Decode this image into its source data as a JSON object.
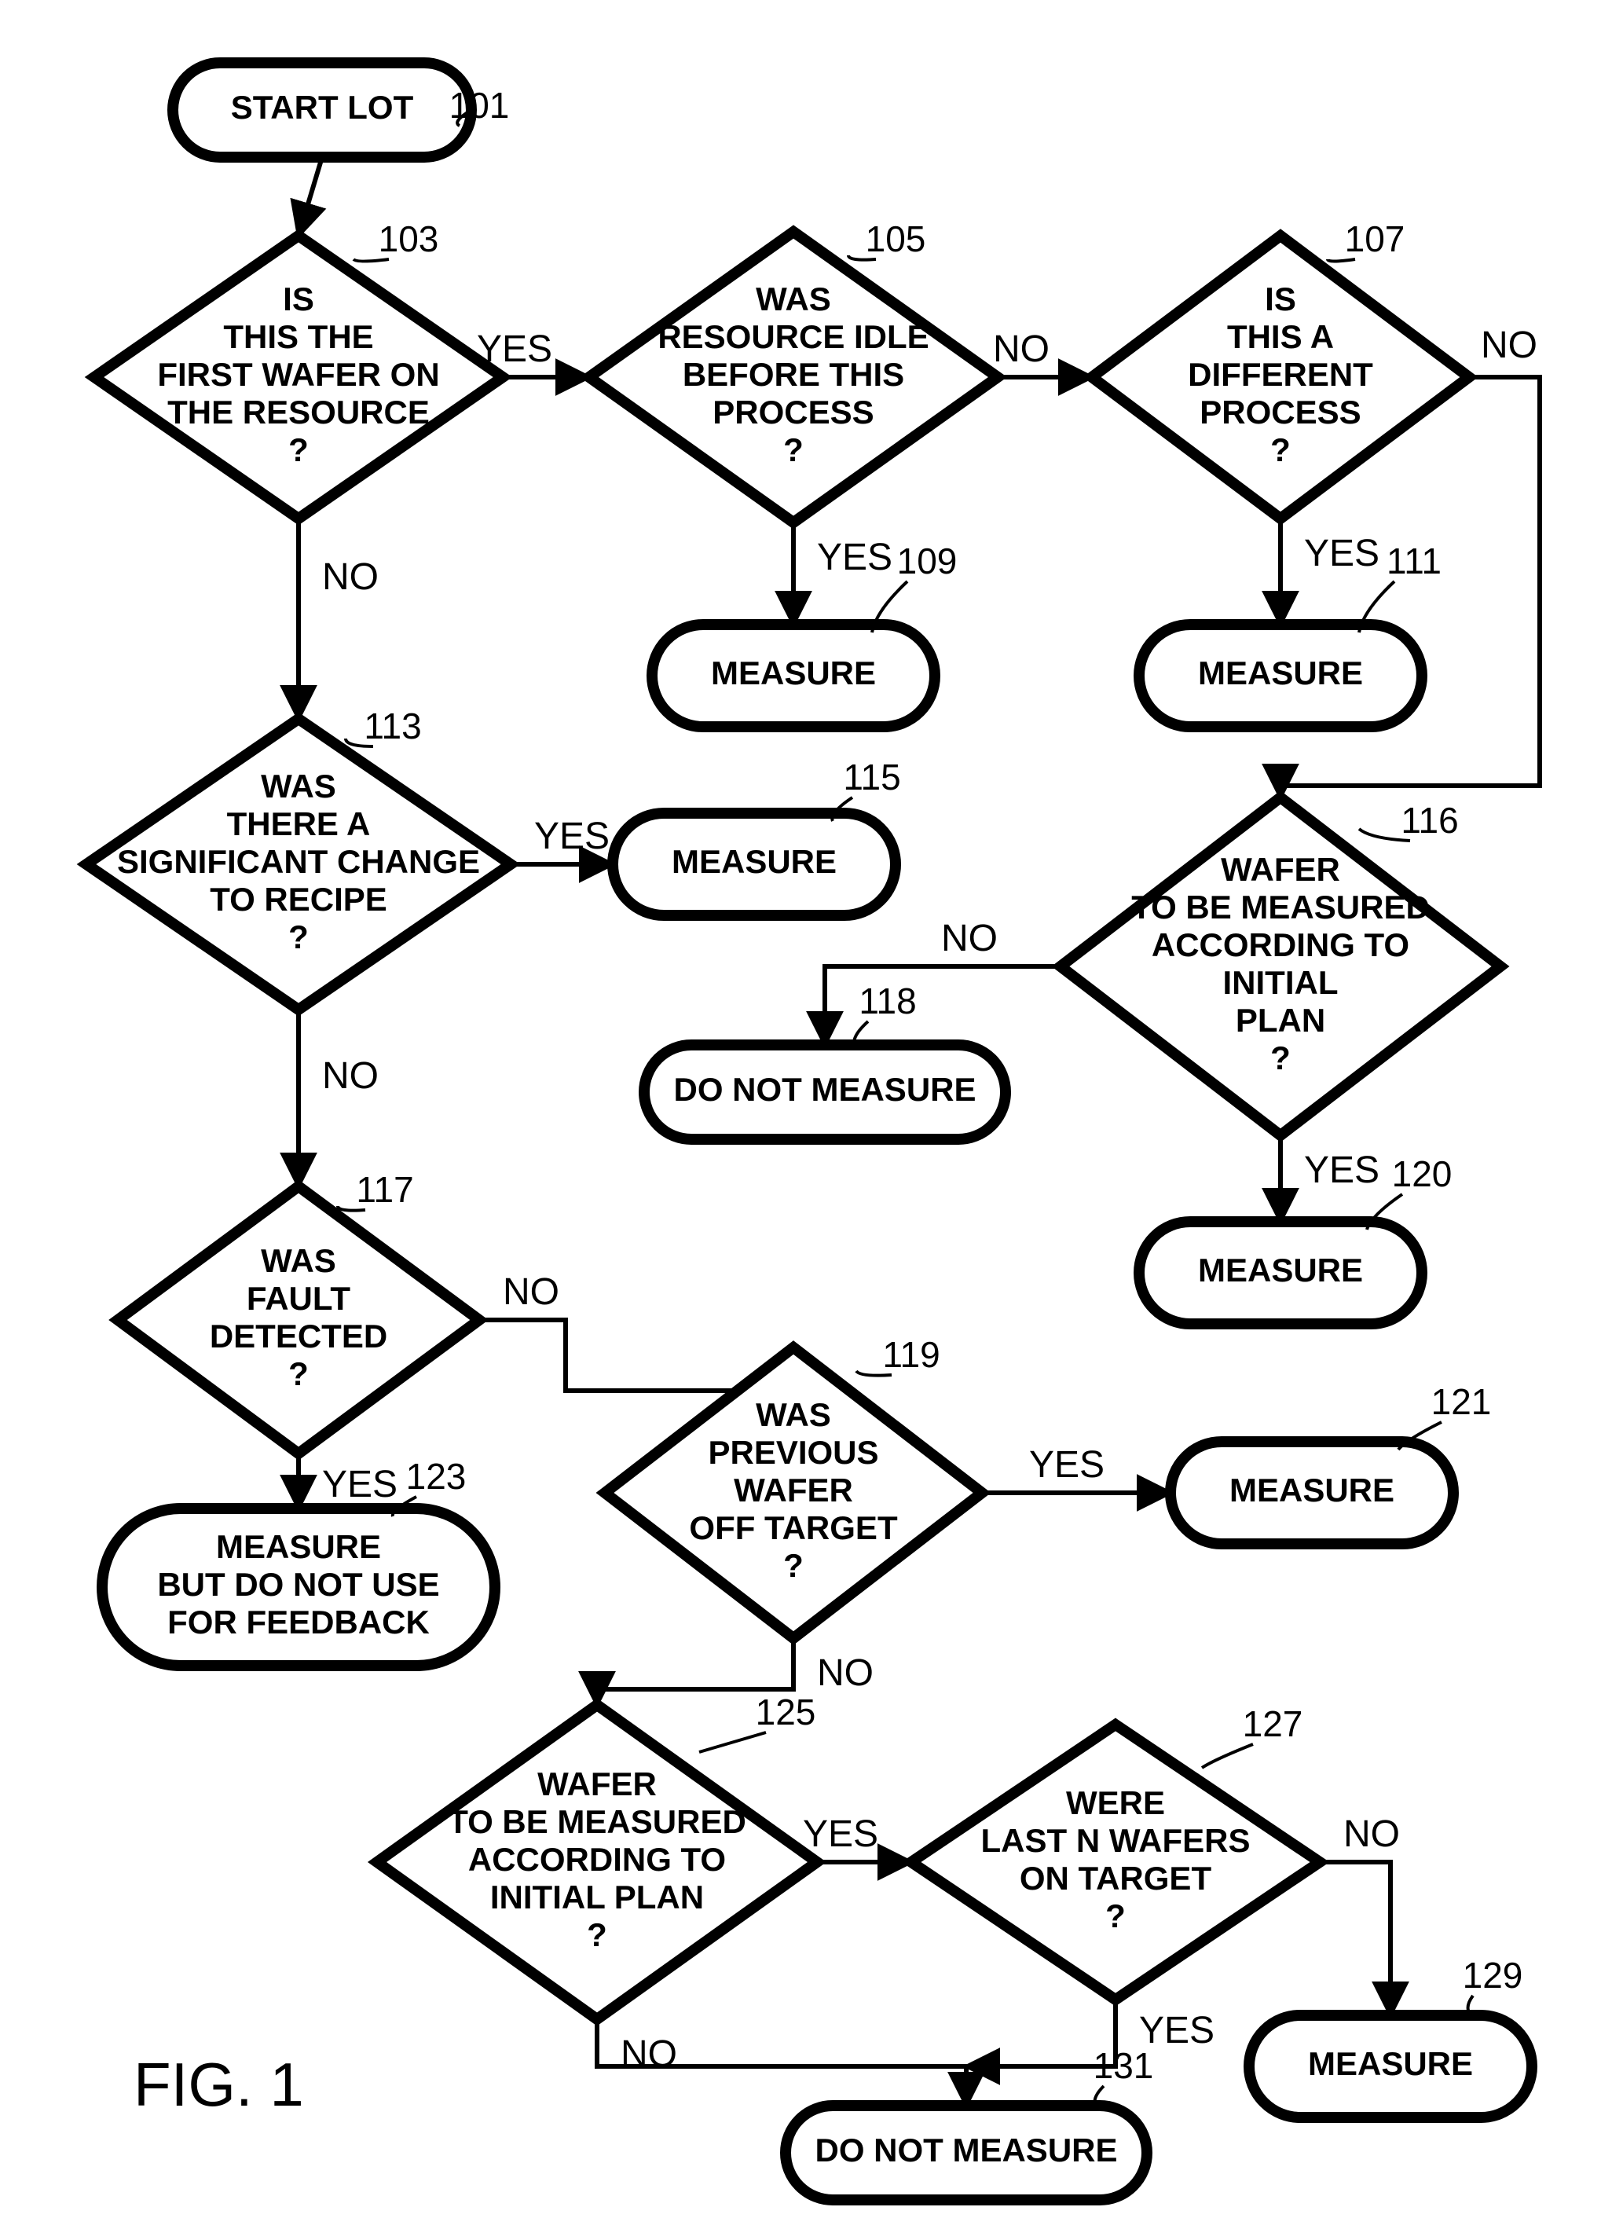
{
  "figure_label": "FIG. 1",
  "nodes": {
    "n101": {
      "ref": "101",
      "lines": [
        "START LOT"
      ]
    },
    "n103": {
      "ref": "103",
      "lines": [
        "IS",
        "THIS THE",
        "FIRST WAFER ON",
        "THE RESOURCE",
        "?"
      ]
    },
    "n105": {
      "ref": "105",
      "lines": [
        "WAS",
        "RESOURCE IDLE",
        "BEFORE THIS",
        "PROCESS",
        "?"
      ]
    },
    "n107": {
      "ref": "107",
      "lines": [
        "IS",
        "THIS A",
        "DIFFERENT",
        "PROCESS",
        "?"
      ]
    },
    "n109": {
      "ref": "109",
      "lines": [
        "MEASURE"
      ]
    },
    "n111": {
      "ref": "111",
      "lines": [
        "MEASURE"
      ]
    },
    "n113": {
      "ref": "113",
      "lines": [
        "WAS",
        "THERE A",
        "SIGNIFICANT CHANGE",
        "TO RECIPE",
        "?"
      ]
    },
    "n115": {
      "ref": "115",
      "lines": [
        "MEASURE"
      ]
    },
    "n116": {
      "ref": "116",
      "lines": [
        "WAFER",
        "TO BE MEASURED",
        "ACCORDING TO",
        "INITIAL",
        "PLAN",
        "?"
      ]
    },
    "n117": {
      "ref": "117",
      "lines": [
        "WAS",
        "FAULT",
        "DETECTED",
        "?"
      ]
    },
    "n118": {
      "ref": "118",
      "lines": [
        "DO NOT MEASURE"
      ]
    },
    "n119": {
      "ref": "119",
      "lines": [
        "WAS",
        "PREVIOUS",
        "WAFER",
        "OFF TARGET",
        "?"
      ]
    },
    "n120": {
      "ref": "120",
      "lines": [
        "MEASURE"
      ]
    },
    "n121": {
      "ref": "121",
      "lines": [
        "MEASURE"
      ]
    },
    "n123": {
      "ref": "123",
      "lines": [
        "MEASURE",
        "BUT DO NOT USE",
        "FOR FEEDBACK"
      ]
    },
    "n125": {
      "ref": "125",
      "lines": [
        "WAFER",
        "TO BE MEASURED",
        "ACCORDING TO",
        "INITIAL PLAN",
        "?"
      ]
    },
    "n127": {
      "ref": "127",
      "lines": [
        "WERE",
        "LAST N WAFERS",
        "ON TARGET",
        "?"
      ]
    },
    "n129": {
      "ref": "129",
      "lines": [
        "MEASURE"
      ]
    },
    "n131": {
      "ref": "131",
      "lines": [
        "DO NOT MEASURE"
      ]
    }
  },
  "edge_labels": {
    "yes": "YES",
    "no": "NO"
  },
  "style": {
    "stroke": "#000000",
    "stroke_width_thin": 6,
    "stroke_width_bold": 14,
    "font_size_node": 42,
    "font_size_ref": 46,
    "font_size_edge": 48,
    "font_size_fig": 78,
    "line_height": 48
  }
}
